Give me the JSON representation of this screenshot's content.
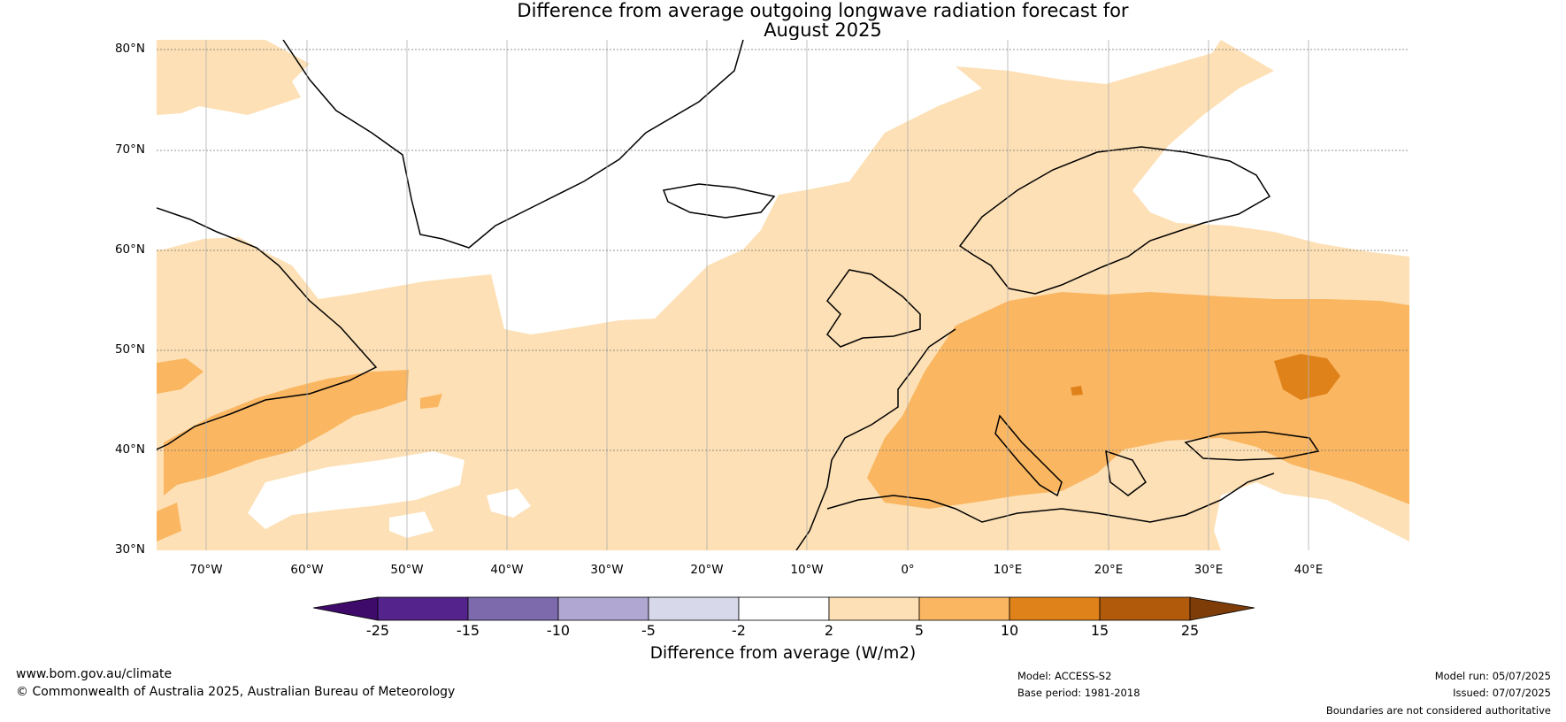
{
  "title": {
    "line1": "Difference from average outgoing longwave radiation forecast for",
    "line2": "August 2025"
  },
  "map": {
    "region": "North Atlantic and Europe",
    "lat_ticks": [
      "80°N",
      "70°N",
      "60°N",
      "50°N",
      "40°N",
      "30°N"
    ],
    "lon_ticks": [
      "70°W",
      "60°W",
      "50°W",
      "40°W",
      "30°W",
      "20°W",
      "10°W",
      "0°",
      "10°E",
      "20°E",
      "30°E",
      "40°E"
    ],
    "lat_range": [
      30,
      81
    ],
    "lon_range": [
      -75,
      50
    ],
    "coastline_color": "#000000",
    "border_color": "#808080"
  },
  "colorbar": {
    "title": "Difference from average (W/m2)",
    "ticks": [
      "-25",
      "-15",
      "-10",
      "-5",
      "-2",
      "2",
      "5",
      "10",
      "15",
      "25"
    ],
    "bins": [
      {
        "range": "< -25",
        "color": "#3f0b6b"
      },
      {
        "range": "-25 to -15",
        "color": "#54238b"
      },
      {
        "range": "-15 to -10",
        "color": "#7c6aad"
      },
      {
        "range": "-10 to -5",
        "color": "#b0a7d2"
      },
      {
        "range": "-5 to -2",
        "color": "#d8d8eb"
      },
      {
        "range": "-2 to 2",
        "color": "#ffffff"
      },
      {
        "range": "2 to 5",
        "color": "#fde0b5"
      },
      {
        "range": "5 to 10",
        "color": "#fab661"
      },
      {
        "range": "10 to 15",
        "color": "#e0821a"
      },
      {
        "range": "15 to 25",
        "color": "#b15a0b"
      },
      {
        "range": "> 25",
        "color": "#7e3d08"
      }
    ]
  },
  "footer": {
    "website": "www.bom.gov.au/climate",
    "copyright": "© Commonwealth of Australia 2025, Australian Bureau of Meteorology",
    "model": "Model: ACCESS-S2",
    "base_period": "Base period: 1981-2018",
    "model_run": "Model run: 05/07/2025",
    "issued": "Issued: 07/07/2025",
    "disclaimer": "Boundaries are not considered authoritative"
  }
}
